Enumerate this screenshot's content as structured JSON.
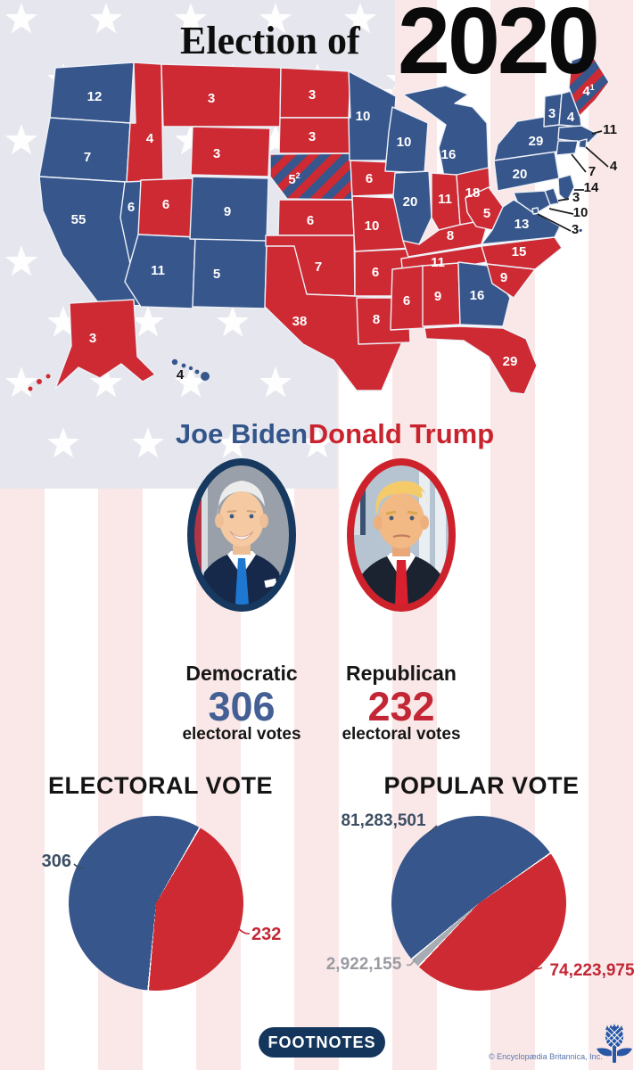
{
  "title": {
    "prefix": "Election of",
    "year": "2020"
  },
  "map": {
    "colors": {
      "dem": "#36568c",
      "rep": "#cd2a33",
      "border": "#eef1f7",
      "callout_text": "#141414"
    },
    "states": [
      {
        "abbr": "WA",
        "name": "Washington",
        "votes": 12,
        "party": "dem"
      },
      {
        "abbr": "OR",
        "name": "Oregon",
        "votes": 7,
        "party": "dem"
      },
      {
        "abbr": "CA",
        "name": "California",
        "votes": 55,
        "party": "dem"
      },
      {
        "abbr": "NV",
        "name": "Nevada",
        "votes": 6,
        "party": "dem"
      },
      {
        "abbr": "ID",
        "name": "Idaho",
        "votes": 4,
        "party": "rep"
      },
      {
        "abbr": "MT",
        "name": "Montana",
        "votes": 3,
        "party": "rep"
      },
      {
        "abbr": "WY",
        "name": "Wyoming",
        "votes": 3,
        "party": "rep"
      },
      {
        "abbr": "UT",
        "name": "Utah",
        "votes": 6,
        "party": "rep"
      },
      {
        "abbr": "AZ",
        "name": "Arizona",
        "votes": 11,
        "party": "dem"
      },
      {
        "abbr": "NM",
        "name": "New Mexico",
        "votes": 5,
        "party": "dem"
      },
      {
        "abbr": "CO",
        "name": "Colorado",
        "votes": 9,
        "party": "dem"
      },
      {
        "abbr": "ND",
        "name": "North Dakota",
        "votes": 3,
        "party": "rep"
      },
      {
        "abbr": "SD",
        "name": "South Dakota",
        "votes": 3,
        "party": "rep"
      },
      {
        "abbr": "NE",
        "name": "Nebraska",
        "votes": 5,
        "party": "split",
        "note": "2"
      },
      {
        "abbr": "KS",
        "name": "Kansas",
        "votes": 6,
        "party": "rep"
      },
      {
        "abbr": "OK",
        "name": "Oklahoma",
        "votes": 7,
        "party": "rep"
      },
      {
        "abbr": "TX",
        "name": "Texas",
        "votes": 38,
        "party": "rep"
      },
      {
        "abbr": "MN",
        "name": "Minnesota",
        "votes": 10,
        "party": "dem"
      },
      {
        "abbr": "IA",
        "name": "Iowa",
        "votes": 6,
        "party": "rep"
      },
      {
        "abbr": "MO",
        "name": "Missouri",
        "votes": 10,
        "party": "rep"
      },
      {
        "abbr": "AR",
        "name": "Arkansas",
        "votes": 6,
        "party": "rep"
      },
      {
        "abbr": "LA",
        "name": "Louisiana",
        "votes": 8,
        "party": "rep"
      },
      {
        "abbr": "WI",
        "name": "Wisconsin",
        "votes": 10,
        "party": "dem"
      },
      {
        "abbr": "IL",
        "name": "Illinois",
        "votes": 20,
        "party": "dem"
      },
      {
        "abbr": "MI",
        "name": "Michigan",
        "votes": 16,
        "party": "dem"
      },
      {
        "abbr": "IN",
        "name": "Indiana",
        "votes": 11,
        "party": "rep"
      },
      {
        "abbr": "OH",
        "name": "Ohio",
        "votes": 18,
        "party": "rep"
      },
      {
        "abbr": "KY",
        "name": "Kentucky",
        "votes": 8,
        "party": "rep"
      },
      {
        "abbr": "TN",
        "name": "Tennessee",
        "votes": 11,
        "party": "rep"
      },
      {
        "abbr": "MS",
        "name": "Mississippi",
        "votes": 6,
        "party": "rep"
      },
      {
        "abbr": "AL",
        "name": "Alabama",
        "votes": 9,
        "party": "rep"
      },
      {
        "abbr": "GA",
        "name": "Georgia",
        "votes": 16,
        "party": "dem"
      },
      {
        "abbr": "FL",
        "name": "Florida",
        "votes": 29,
        "party": "rep"
      },
      {
        "abbr": "SC",
        "name": "South Carolina",
        "votes": 9,
        "party": "rep"
      },
      {
        "abbr": "NC",
        "name": "North Carolina",
        "votes": 15,
        "party": "rep"
      },
      {
        "abbr": "VA",
        "name": "Virginia",
        "votes": 13,
        "party": "dem"
      },
      {
        "abbr": "WV",
        "name": "West Virginia",
        "votes": 5,
        "party": "rep"
      },
      {
        "abbr": "PA",
        "name": "Pennsylvania",
        "votes": 20,
        "party": "dem"
      },
      {
        "abbr": "NY",
        "name": "New York",
        "votes": 29,
        "party": "dem"
      },
      {
        "abbr": "VT",
        "name": "Vermont",
        "votes": 3,
        "party": "dem"
      },
      {
        "abbr": "NH",
        "name": "New Hampshire",
        "votes": 4,
        "party": "dem"
      },
      {
        "abbr": "ME",
        "name": "Maine",
        "votes": 4,
        "party": "split",
        "note": "1"
      },
      {
        "abbr": "MA",
        "name": "Massachusetts",
        "votes": 11,
        "party": "dem",
        "callout": true
      },
      {
        "abbr": "RI",
        "name": "Rhode Island",
        "votes": 4,
        "party": "dem",
        "callout": true
      },
      {
        "abbr": "CT",
        "name": "Connecticut",
        "votes": 7,
        "party": "dem",
        "callout": true
      },
      {
        "abbr": "NJ",
        "name": "New Jersey",
        "votes": 14,
        "party": "dem",
        "callout": true
      },
      {
        "abbr": "DE",
        "name": "Delaware",
        "votes": 3,
        "party": "dem",
        "callout": true
      },
      {
        "abbr": "MD",
        "name": "Maryland",
        "votes": 10,
        "party": "dem",
        "callout": true
      },
      {
        "abbr": "DC",
        "name": "District of Columbia",
        "votes": 3,
        "party": "dem",
        "callout": true,
        "note": "dot"
      },
      {
        "abbr": "AK",
        "name": "Alaska",
        "votes": 3,
        "party": "rep"
      },
      {
        "abbr": "HI",
        "name": "Hawaii",
        "votes": 4,
        "party": "dem",
        "darkLabel": true
      }
    ]
  },
  "candidates": [
    {
      "name": "Joe Biden",
      "party_label": "Democratic",
      "electoral_votes": "306",
      "votes_caption": "electoral votes",
      "color": "#33558a",
      "number_color": "#435f94"
    },
    {
      "name": "Donald Trump",
      "party_label": "Republican",
      "electoral_votes": "232",
      "votes_caption": "electoral votes",
      "color": "#c9242e",
      "number_color": "#c32735"
    }
  ],
  "chart_data": [
    {
      "type": "pie",
      "title": "ELECTORAL VOTE",
      "legend_position": "none",
      "slices": [
        {
          "name": "Biden",
          "label": "306",
          "value": 306,
          "color": "#36568c",
          "label_color": "#3d4e63"
        },
        {
          "name": "Trump",
          "label": "232",
          "value": 232,
          "color": "#cd2a33",
          "label_color": "#c32735"
        }
      ]
    },
    {
      "type": "pie",
      "title": "POPULAR VOTE",
      "legend_position": "none",
      "slices": [
        {
          "name": "Biden",
          "label": "81,283,501",
          "value": 81283501,
          "color": "#36568c",
          "label_color": "#3d4e63"
        },
        {
          "name": "Trump",
          "label": "74,223,975",
          "value": 74223975,
          "color": "#cd2a33",
          "label_color": "#c32735"
        },
        {
          "name": "Other",
          "label": "2,922,155",
          "value": 2922155,
          "color": "#a7abb2",
          "label_color": "#9a9ba2"
        }
      ]
    }
  ],
  "footer": {
    "footnotes_label": "FOOTNOTES",
    "copyright": "© Encyclopædia Britannica, Inc."
  }
}
